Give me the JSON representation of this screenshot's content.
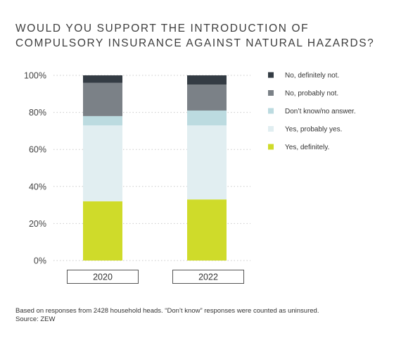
{
  "title": "WOULD YOU SUPPORT THE INTRODUCTION OF COMPULSORY INSURANCE AGAINST NATURAL HAZARDS?",
  "note_line1": "Based on responses from 2428 household heads. “Don’t know” responses were counted as uninsured.",
  "note_line2": "Source: ZEW",
  "chart_data": {
    "type": "bar",
    "stacked": true,
    "categories": [
      "2020",
      "2022"
    ],
    "ylim": [
      0,
      100
    ],
    "yticks": [
      0,
      20,
      40,
      60,
      80,
      100
    ],
    "ytick_labels": [
      "0%",
      "20%",
      "40%",
      "60%",
      "80%",
      "100%"
    ],
    "grid": true,
    "legend_placement": "right",
    "series": [
      {
        "name": "Yes, definitely.",
        "color": "#cfdb2a",
        "values": [
          32,
          33
        ]
      },
      {
        "name": "Yes, probably yes.",
        "color": "#e1eef1",
        "values": [
          41,
          40
        ]
      },
      {
        "name": "Don’t know/no answer.",
        "color": "#bcdbe0",
        "values": [
          5,
          8
        ]
      },
      {
        "name": "No, probably not.",
        "color": "#7b8187",
        "values": [
          18,
          14
        ]
      },
      {
        "name": "No, definitely not.",
        "color": "#343c44",
        "values": [
          4,
          5
        ]
      }
    ],
    "legend_order": [
      "No, definitely not.",
      "No, probably not.",
      "Don’t know/no answer.",
      "Yes, probably yes.",
      "Yes, definitely."
    ]
  }
}
